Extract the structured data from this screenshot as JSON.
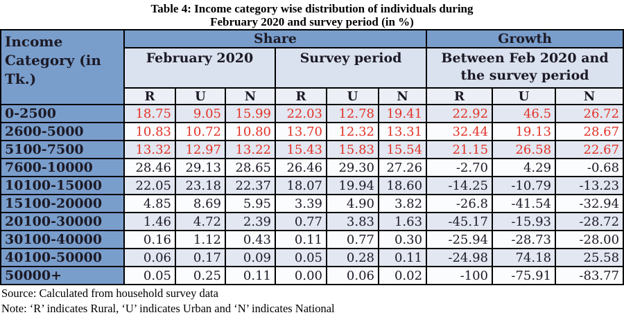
{
  "title": {
    "line1": "Table 4: Income category wise distribution of individuals during",
    "line2": "February 2020 and survey period (in %)"
  },
  "table": {
    "corner_header": "Income Category (in Tk.)",
    "group_headers": {
      "share": "Share",
      "growth": "Growth"
    },
    "sub_headers": {
      "february": "February 2020",
      "survey": "Survey period",
      "growth_between": "Between Feb 2020 and the survey period"
    },
    "run_headers": [
      "R",
      "U",
      "N",
      "R",
      "U",
      "N",
      "R",
      "U",
      "N"
    ],
    "rows": [
      {
        "label": "0-2500",
        "red": true,
        "values": [
          "18.75",
          "9.05",
          "15.99",
          "22.03",
          "12.78",
          "19.41",
          "22.92",
          "46.5",
          "26.72"
        ]
      },
      {
        "label": "2600-5000",
        "red": true,
        "values": [
          "10.83",
          "10.72",
          "10.80",
          "13.70",
          "12.32",
          "13.31",
          "32.44",
          "19.13",
          "28.67"
        ]
      },
      {
        "label": "5100-7500",
        "red": true,
        "values": [
          "13.32",
          "12.97",
          "13.22",
          "15.43",
          "15.83",
          "15.54",
          "21.15",
          "26.58",
          "22.67"
        ]
      },
      {
        "label": "7600-10000",
        "red": false,
        "values": [
          "28.46",
          "29.13",
          "28.65",
          "26.46",
          "29.30",
          "27.26",
          "-2.70",
          "4.29",
          "-0.68"
        ]
      },
      {
        "label": "10100-15000",
        "red": false,
        "values": [
          "22.05",
          "23.18",
          "22.37",
          "18.07",
          "19.94",
          "18.60",
          "-14.25",
          "-10.79",
          "-13.23"
        ]
      },
      {
        "label": "15100-20000",
        "red": false,
        "values": [
          "4.85",
          "8.69",
          "5.95",
          "3.39",
          "4.90",
          "3.82",
          "-26.8",
          "-41.54",
          "-32.94"
        ]
      },
      {
        "label": "20100-30000",
        "red": false,
        "values": [
          "1.46",
          "4.72",
          "2.39",
          "0.77",
          "3.83",
          "1.63",
          "-45.17",
          "-15.93",
          "-28.72"
        ]
      },
      {
        "label": "30100-40000",
        "red": false,
        "values": [
          "0.16",
          "1.12",
          "0.43",
          "0.11",
          "0.77",
          "0.30",
          "-25.94",
          "-28.73",
          "-28.00"
        ]
      },
      {
        "label": "40100-50000",
        "red": false,
        "values": [
          "0.06",
          "0.17",
          "0.09",
          "0.05",
          "0.28",
          "0.11",
          "-24.98",
          "74.18",
          "25.58"
        ]
      },
      {
        "label": "50000+",
        "red": false,
        "values": [
          "0.05",
          "0.25",
          "0.11",
          "0.00",
          "0.06",
          "0.02",
          "-100",
          "-75.91",
          "-83.77"
        ]
      }
    ]
  },
  "footer": {
    "source": "Source: Calculated from household survey data",
    "note": "Note: ‘R’ indicates Rural, ‘U’ indicates Urban and ‘N’ indicates National"
  },
  "colors": {
    "header_blue": "#7a9ecc",
    "subheader_bg": "#dae1ef",
    "run_row_bg": "#eceff6",
    "row_alt_bg": "#e2e7f1",
    "row_plain_bg": "#fbfcfe",
    "red_text": "#e23227",
    "dark_text": "#1c1a26"
  }
}
